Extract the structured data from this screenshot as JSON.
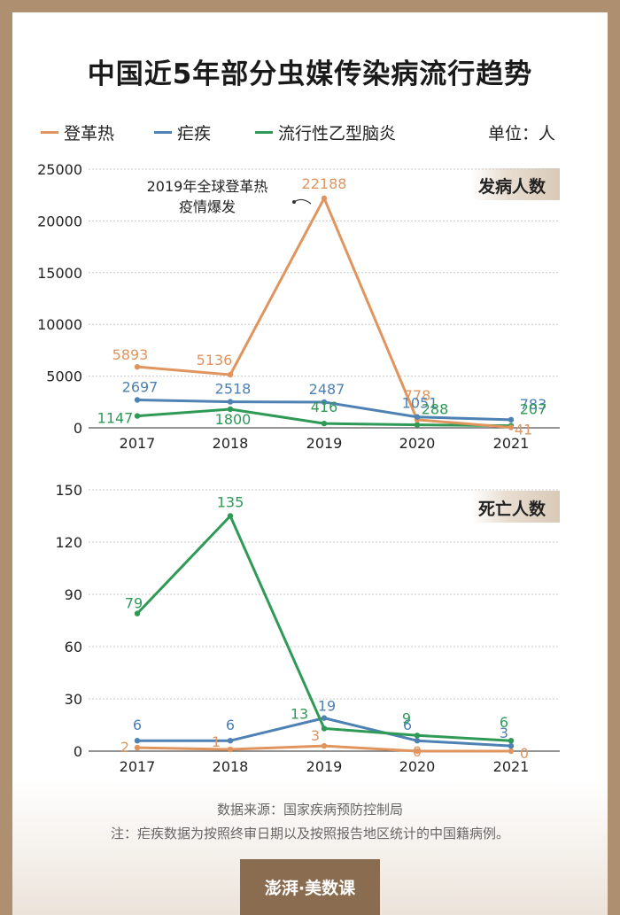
{
  "title": "中国近5年部分虫媒传染病流行趋势",
  "unit": "单位：人",
  "colors": {
    "dengue": "#e0955e",
    "malaria": "#4e81b4",
    "encephalitis": "#2e9a55"
  },
  "legend": [
    "登革热",
    "疟疾",
    "流行性乙型脑炎"
  ],
  "chart_data": [
    {
      "type": "line",
      "label": "发病人数",
      "categories": [
        "2017",
        "2018",
        "2019",
        "2020",
        "2021"
      ],
      "ylim": [
        0,
        25000
      ],
      "yticks": [
        "0",
        "5000",
        "10000",
        "15000",
        "20000",
        "25000"
      ],
      "annotation": [
        "2019年全球登革热",
        "疫情爆发"
      ],
      "series": [
        {
          "name": "登革热",
          "values": [
            5893,
            5136,
            22188,
            778,
            41
          ]
        },
        {
          "name": "疟疾",
          "values": [
            2697,
            2518,
            2487,
            1051,
            783
          ]
        },
        {
          "name": "流行性乙型脑炎",
          "values": [
            1147,
            1800,
            416,
            288,
            207
          ]
        }
      ]
    },
    {
      "type": "line",
      "label": "死亡人数",
      "categories": [
        "2017",
        "2018",
        "2019",
        "2020",
        "2021"
      ],
      "ylim": [
        0,
        150
      ],
      "yticks": [
        "0",
        "30",
        "60",
        "90",
        "120",
        "150"
      ],
      "series": [
        {
          "name": "登革热",
          "values": [
            2,
            1,
            3,
            0,
            0
          ]
        },
        {
          "name": "疟疾",
          "values": [
            6,
            6,
            19,
            6,
            3
          ]
        },
        {
          "name": "流行性乙型脑炎",
          "values": [
            79,
            135,
            13,
            9,
            6
          ]
        }
      ]
    }
  ],
  "source": "数据来源：国家疾病预防控制局",
  "note": "注：疟疾数据为按照终审日期以及按照报告地区统计的中国籍病例。",
  "brand": "澎湃·美数课"
}
